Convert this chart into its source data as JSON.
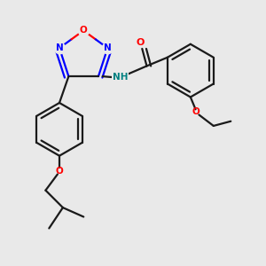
{
  "bg_color": "#e9e9e9",
  "bond_color": "#1a1a1a",
  "N_color": "#0000ff",
  "O_color": "#ff0000",
  "NH_color": "#008080",
  "lw": 1.6,
  "dbo": 0.018,
  "fig_w": 3.0,
  "fig_h": 3.0,
  "dpi": 100,
  "xlim": [
    -0.15,
    1.0
  ],
  "ylim": [
    -0.15,
    1.0
  ]
}
